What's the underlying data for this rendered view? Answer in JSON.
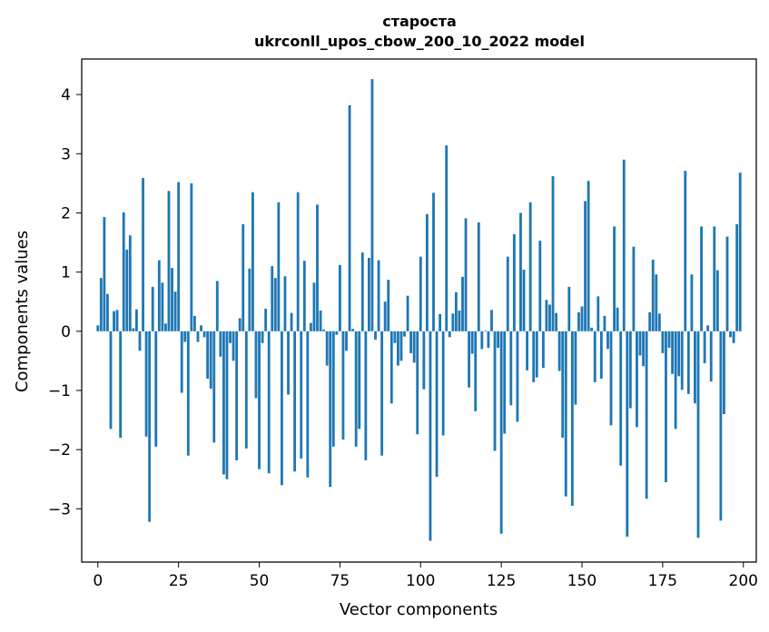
{
  "chart_data": {
    "type": "bar",
    "title": "староста",
    "subtitle": "ukrconll_upos_cbow_200_10_2022 model",
    "xlabel": "Vector components",
    "ylabel": "Components values",
    "xlim": [
      -5,
      204
    ],
    "ylim": [
      -3.9,
      4.6
    ],
    "xticks": [
      0,
      25,
      50,
      75,
      100,
      125,
      150,
      175,
      200
    ],
    "yticks": [
      -3,
      -2,
      -1,
      0,
      1,
      2,
      3,
      4
    ],
    "grid": false,
    "bar_color": "#1f77b4",
    "x": [
      0,
      1,
      2,
      3,
      4,
      5,
      6,
      7,
      8,
      9,
      10,
      11,
      12,
      13,
      14,
      15,
      16,
      17,
      18,
      19,
      20,
      21,
      22,
      23,
      24,
      25,
      26,
      27,
      28,
      29,
      30,
      31,
      32,
      33,
      34,
      35,
      36,
      37,
      38,
      39,
      40,
      41,
      42,
      43,
      44,
      45,
      46,
      47,
      48,
      49,
      50,
      51,
      52,
      53,
      54,
      55,
      56,
      57,
      58,
      59,
      60,
      61,
      62,
      63,
      64,
      65,
      66,
      67,
      68,
      69,
      70,
      71,
      72,
      73,
      74,
      75,
      76,
      77,
      78,
      79,
      80,
      81,
      82,
      83,
      84,
      85,
      86,
      87,
      88,
      89,
      90,
      91,
      92,
      93,
      94,
      95,
      96,
      97,
      98,
      99,
      100,
      101,
      102,
      103,
      104,
      105,
      106,
      107,
      108,
      109,
      110,
      111,
      112,
      113,
      114,
      115,
      116,
      117,
      118,
      119,
      120,
      121,
      122,
      123,
      124,
      125,
      126,
      127,
      128,
      129,
      130,
      131,
      132,
      133,
      134,
      135,
      136,
      137,
      138,
      139,
      140,
      141,
      142,
      143,
      144,
      145,
      146,
      147,
      148,
      149,
      150,
      151,
      152,
      153,
      154,
      155,
      156,
      157,
      158,
      159,
      160,
      161,
      162,
      163,
      164,
      165,
      166,
      167,
      168,
      169,
      170,
      171,
      172,
      173,
      174,
      175,
      176,
      177,
      178,
      179,
      180,
      181,
      182,
      183,
      184,
      185,
      186,
      187,
      188,
      189,
      190,
      191,
      192,
      193,
      194,
      195,
      196,
      197,
      198,
      199
    ],
    "values": [
      0.1,
      0.9,
      1.93,
      0.63,
      -1.65,
      0.34,
      0.36,
      -1.8,
      2.01,
      1.38,
      1.62,
      0.05,
      0.37,
      -0.33,
      2.59,
      -1.78,
      -3.22,
      0.75,
      -1.95,
      1.2,
      0.82,
      0.13,
      2.37,
      1.07,
      0.67,
      2.52,
      -1.04,
      -0.18,
      -2.1,
      2.5,
      0.26,
      -0.18,
      0.1,
      -0.1,
      -0.8,
      -0.97,
      -1.88,
      0.85,
      -0.43,
      -2.42,
      -2.5,
      -0.2,
      -0.5,
      -2.18,
      0.22,
      1.81,
      -1.98,
      1.06,
      2.35,
      -1.13,
      -2.33,
      -0.2,
      0.38,
      -2.4,
      1.1,
      0.9,
      2.18,
      -2.6,
      0.93,
      -1.07,
      0.31,
      -2.37,
      2.35,
      -2.15,
      1.19,
      -2.47,
      0.14,
      0.82,
      2.14,
      0.35,
      0.03,
      -0.58,
      -2.63,
      -1.95,
      -0.06,
      1.12,
      -1.83,
      -0.33,
      3.82,
      0.04,
      -1.95,
      -1.65,
      1.33,
      -2.18,
      1.24,
      4.26,
      -0.14,
      1.2,
      -2.1,
      0.5,
      0.87,
      -1.22,
      -0.2,
      -0.58,
      -0.5,
      -0.09,
      0.6,
      -0.37,
      -0.53,
      -1.74,
      1.26,
      -0.98,
      1.98,
      -3.54,
      2.34,
      -2.46,
      0.29,
      -1.76,
      3.14,
      -0.1,
      0.3,
      0.66,
      0.35,
      0.92,
      1.91,
      -0.95,
      -0.38,
      -1.35,
      1.84,
      -0.3,
      0.01,
      -0.28,
      0.36,
      -2.02,
      -0.28,
      -3.42,
      -1.73,
      1.26,
      -1.25,
      1.64,
      -1.53,
      2.0,
      1.04,
      -0.66,
      2.18,
      -0.86,
      -0.78,
      1.53,
      -0.62,
      0.53,
      0.45,
      2.62,
      0.31,
      -0.67,
      -1.8,
      -2.79,
      0.75,
      -2.95,
      -1.24,
      0.32,
      0.42,
      2.2,
      2.54,
      0.06,
      -0.86,
      0.59,
      -0.8,
      0.26,
      -0.3,
      -1.59,
      1.77,
      0.4,
      -2.27,
      2.9,
      -3.47,
      -1.3,
      1.43,
      -1.62,
      -0.41,
      -0.59,
      -2.83,
      0.32,
      1.21,
      0.96,
      0.3,
      -0.37,
      -2.55,
      -0.28,
      -0.72,
      -1.65,
      -0.76,
      -0.99,
      2.71,
      -1.06,
      0.96,
      -1.22,
      -3.49,
      1.77,
      -0.54,
      0.1,
      -0.85,
      1.77,
      1.03,
      -3.2,
      -1.4,
      1.6,
      -0.1,
      -0.2,
      1.81,
      2.68
    ]
  }
}
